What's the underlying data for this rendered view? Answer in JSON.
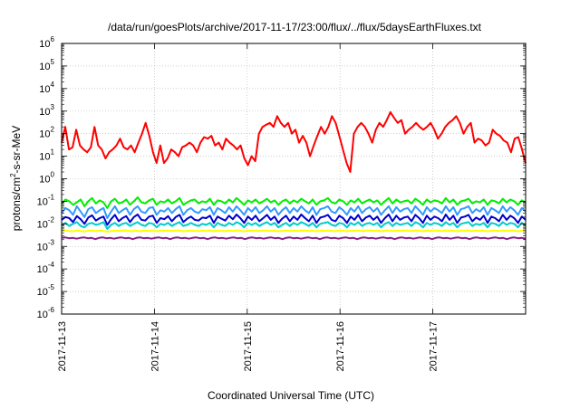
{
  "chart_data": {
    "type": "line",
    "title": "/data/run/goesPlots/archive/2017-11-17/23:00/flux/../flux/5daysEarthFluxes.txt",
    "xlabel": "Coordinated Universal Time (UTC)",
    "ylabel_parts": [
      "protons/cm",
      "2",
      "-s-sr-MeV"
    ],
    "yscale": "log",
    "ylim": [
      1e-06,
      1000000.0
    ],
    "xlim": [
      "2017-11-13T00:00",
      "2017-11-18T00:00"
    ],
    "x_ticks": [
      {
        "at": "2017-11-13T00:00",
        "label": "2017-11-13"
      },
      {
        "at": "2017-11-14T00:00",
        "label": "2017-11-14"
      },
      {
        "at": "2017-11-15T00:00",
        "label": "2017-11-15"
      },
      {
        "at": "2017-11-16T00:00",
        "label": "2017-11-16"
      },
      {
        "at": "2017-11-17T00:00",
        "label": "2017-11-17"
      }
    ],
    "y_ticks": [
      {
        "value": 1e-06,
        "base": "10",
        "exp": "-6"
      },
      {
        "value": 1e-05,
        "base": "10",
        "exp": "-5"
      },
      {
        "value": 0.0001,
        "base": "10",
        "exp": "-4"
      },
      {
        "value": 0.001,
        "base": "10",
        "exp": "-3"
      },
      {
        "value": 0.01,
        "base": "10",
        "exp": "-2"
      },
      {
        "value": 0.1,
        "base": "10",
        "exp": "-1"
      },
      {
        "value": 1,
        "base": "10",
        "exp": "0"
      },
      {
        "value": 10,
        "base": "10",
        "exp": "1"
      },
      {
        "value": 100,
        "base": "10",
        "exp": "2"
      },
      {
        "value": 1000,
        "base": "10",
        "exp": "3"
      },
      {
        "value": 10000,
        "base": "10",
        "exp": "4"
      },
      {
        "value": 100000,
        "base": "10",
        "exp": "5"
      },
      {
        "value": 1000000,
        "base": "10",
        "exp": "6"
      }
    ],
    "grid": true,
    "series": [
      {
        "color": "#ff0000",
        "x_start": "2017-11-13T00:00",
        "x_end": "2017-11-18T00:00",
        "values": [
          40,
          200,
          20,
          25,
          150,
          30,
          20,
          15,
          25,
          200,
          30,
          20,
          8,
          15,
          20,
          30,
          60,
          25,
          20,
          30,
          15,
          40,
          100,
          300,
          80,
          15,
          5,
          30,
          5,
          8,
          20,
          15,
          10,
          25,
          30,
          40,
          30,
          15,
          40,
          70,
          60,
          80,
          30,
          40,
          20,
          60,
          40,
          30,
          20,
          30,
          8,
          4,
          10,
          6,
          100,
          200,
          250,
          300,
          200,
          600,
          300,
          200,
          300,
          100,
          150,
          40,
          80,
          40,
          10,
          30,
          80,
          200,
          100,
          200,
          600,
          300,
          80,
          20,
          5,
          2,
          100,
          200,
          300,
          200,
          100,
          40,
          150,
          300,
          200,
          400,
          900,
          500,
          300,
          400,
          100,
          150,
          200,
          300,
          200,
          150,
          200,
          300,
          150,
          60,
          100,
          200,
          300,
          400,
          600,
          300,
          100,
          200,
          300,
          40,
          60,
          50,
          30,
          40,
          150,
          100,
          80,
          50,
          40,
          15,
          60,
          70,
          20,
          5
        ]
      },
      {
        "color": "#00ee00",
        "x_start": "2017-11-13T00:00",
        "x_end": "2017-11-18T00:00",
        "values": [
          0.08,
          0.12,
          0.1,
          0.07,
          0.09,
          0.12,
          0.06,
          0.1,
          0.14,
          0.08,
          0.11,
          0.09,
          0.05,
          0.1,
          0.13,
          0.08,
          0.09,
          0.12,
          0.07,
          0.1,
          0.15,
          0.09,
          0.08,
          0.11,
          0.13,
          0.07,
          0.1,
          0.09,
          0.12,
          0.08,
          0.1,
          0.14,
          0.07,
          0.09,
          0.11,
          0.12,
          0.08,
          0.1,
          0.09,
          0.13,
          0.07,
          0.11,
          0.1,
          0.08,
          0.12,
          0.09,
          0.14,
          0.1,
          0.07,
          0.11,
          0.09,
          0.12,
          0.08,
          0.1,
          0.13,
          0.09,
          0.11,
          0.07,
          0.1,
          0.12,
          0.08,
          0.11,
          0.09,
          0.13,
          0.1,
          0.08,
          0.12,
          0.07,
          0.1,
          0.11,
          0.14,
          0.09,
          0.08,
          0.12,
          0.1,
          0.07,
          0.11,
          0.09,
          0.13,
          0.08,
          0.1,
          0.12,
          0.09,
          0.11,
          0.07,
          0.1,
          0.14,
          0.08,
          0.12,
          0.09,
          0.1,
          0.11,
          0.08,
          0.13,
          0.1,
          0.07,
          0.12,
          0.09,
          0.11,
          0.1,
          0.08,
          0.14,
          0.09,
          0.12,
          0.07,
          0.1,
          0.11,
          0.13,
          0.08,
          0.1,
          0.09,
          0.12,
          0.07,
          0.11,
          0.1,
          0.08,
          0.13,
          0.09,
          0.12,
          0.1,
          0.07,
          0.11,
          0.09
        ]
      },
      {
        "color": "#3399ff",
        "x_start": "2017-11-13T00:00",
        "x_end": "2017-11-18T00:00",
        "values": [
          0.03,
          0.05,
          0.04,
          0.025,
          0.06,
          0.035,
          0.02,
          0.045,
          0.055,
          0.03,
          0.04,
          0.05,
          0.018,
          0.035,
          0.06,
          0.03,
          0.04,
          0.05,
          0.025,
          0.045,
          0.06,
          0.035,
          0.03,
          0.05,
          0.055,
          0.025,
          0.04,
          0.035,
          0.05,
          0.03,
          0.045,
          0.06,
          0.025,
          0.04,
          0.05,
          0.035,
          0.03,
          0.045,
          0.04,
          0.055,
          0.025,
          0.05,
          0.04,
          0.03,
          0.055,
          0.035,
          0.06,
          0.04,
          0.025,
          0.05,
          0.035,
          0.055,
          0.03,
          0.04,
          0.06,
          0.035,
          0.05,
          0.025,
          0.04,
          0.055,
          0.03,
          0.05,
          0.035,
          0.06,
          0.04,
          0.03,
          0.055,
          0.025,
          0.045,
          0.05,
          0.06,
          0.035,
          0.03,
          0.055,
          0.04,
          0.025,
          0.05,
          0.035,
          0.06,
          0.03,
          0.045,
          0.055,
          0.035,
          0.05,
          0.025,
          0.04,
          0.06,
          0.03,
          0.055,
          0.035,
          0.045,
          0.05,
          0.03,
          0.06,
          0.04,
          0.025,
          0.055,
          0.035,
          0.05,
          0.04,
          0.03,
          0.06,
          0.035,
          0.055,
          0.025,
          0.045,
          0.05,
          0.06,
          0.03,
          0.045,
          0.035,
          0.055,
          0.025,
          0.05,
          0.04,
          0.03,
          0.06,
          0.035,
          0.055,
          0.04,
          0.025,
          0.05,
          0.035
        ]
      },
      {
        "color": "#0000cc",
        "x_start": "2017-11-13T00:00",
        "x_end": "2017-11-18T00:00",
        "values": [
          0.015,
          0.02,
          0.018,
          0.012,
          0.022,
          0.016,
          0.01,
          0.019,
          0.024,
          0.014,
          0.018,
          0.021,
          0.009,
          0.016,
          0.025,
          0.013,
          0.018,
          0.022,
          0.012,
          0.02,
          0.026,
          0.015,
          0.014,
          0.021,
          0.023,
          0.011,
          0.018,
          0.016,
          0.022,
          0.013,
          0.02,
          0.025,
          0.012,
          0.017,
          0.021,
          0.015,
          0.014,
          0.019,
          0.018,
          0.023,
          0.011,
          0.021,
          0.017,
          0.014,
          0.023,
          0.016,
          0.026,
          0.018,
          0.011,
          0.021,
          0.015,
          0.023,
          0.013,
          0.018,
          0.025,
          0.015,
          0.021,
          0.011,
          0.017,
          0.023,
          0.013,
          0.021,
          0.015,
          0.026,
          0.018,
          0.013,
          0.023,
          0.011,
          0.019,
          0.021,
          0.025,
          0.015,
          0.013,
          0.023,
          0.018,
          0.011,
          0.021,
          0.015,
          0.025,
          0.013,
          0.019,
          0.023,
          0.015,
          0.021,
          0.011,
          0.018,
          0.026,
          0.013,
          0.023,
          0.015,
          0.019,
          0.021,
          0.013,
          0.025,
          0.018,
          0.011,
          0.023,
          0.015,
          0.021,
          0.018,
          0.013,
          0.026,
          0.015,
          0.023,
          0.011,
          0.019,
          0.021,
          0.025,
          0.013,
          0.019,
          0.015,
          0.023,
          0.011,
          0.021,
          0.018,
          0.013,
          0.025,
          0.015,
          0.023,
          0.018,
          0.011,
          0.021,
          0.015
        ]
      },
      {
        "color": "#00cccc",
        "x_start": "2017-11-13T00:00",
        "x_end": "2017-11-18T00:00",
        "values": [
          0.009,
          0.011,
          0.008,
          0.01,
          0.012,
          0.008,
          0.007,
          0.01,
          0.011,
          0.009,
          0.01,
          0.012,
          0.006,
          0.009,
          0.011,
          0.008,
          0.01,
          0.011,
          0.008,
          0.01,
          0.012,
          0.009,
          0.008,
          0.011,
          0.01,
          0.007,
          0.01,
          0.009,
          0.011,
          0.008,
          0.01,
          0.012,
          0.008,
          0.009,
          0.011,
          0.009,
          0.008,
          0.01,
          0.009,
          0.011,
          0.007,
          0.011,
          0.009,
          0.008,
          0.011,
          0.009,
          0.012,
          0.01,
          0.007,
          0.011,
          0.009,
          0.011,
          0.008,
          0.01,
          0.012,
          0.009,
          0.011,
          0.007,
          0.009,
          0.011,
          0.008,
          0.011,
          0.009,
          0.012,
          0.01,
          0.008,
          0.011,
          0.007,
          0.01,
          0.011,
          0.012,
          0.009,
          0.008,
          0.011,
          0.01,
          0.007,
          0.011,
          0.009,
          0.012,
          0.008,
          0.01,
          0.011,
          0.009,
          0.011,
          0.007,
          0.01,
          0.012,
          0.008,
          0.011,
          0.009,
          0.01,
          0.011,
          0.008,
          0.012,
          0.01,
          0.007,
          0.011,
          0.009,
          0.011,
          0.01,
          0.008,
          0.012,
          0.009,
          0.011,
          0.007,
          0.01,
          0.011,
          0.012,
          0.008,
          0.01,
          0.009,
          0.011,
          0.007,
          0.011,
          0.01,
          0.008,
          0.012,
          0.009,
          0.011,
          0.01,
          0.007,
          0.011,
          0.009
        ]
      },
      {
        "color": "#ffff00",
        "x_start": "2017-11-13T00:00",
        "x_end": "2017-11-18T00:00",
        "values": [
          0.005,
          0.005,
          0.0048,
          0.0047,
          0.005,
          0.0049,
          0.0046,
          0.005,
          0.0051,
          0.0048,
          0.005,
          0.0049,
          0.0045,
          0.0048,
          0.005,
          0.0049,
          0.005,
          0.0051,
          0.0047,
          0.005,
          0.0049,
          0.0048,
          0.005,
          0.0049,
          0.0051,
          0.0047,
          0.005,
          0.0049,
          0.005,
          0.0048,
          0.005,
          0.0051,
          0.0047,
          0.0049,
          0.005,
          0.0049,
          0.0048,
          0.005,
          0.0049,
          0.0051,
          0.0047,
          0.005,
          0.0049,
          0.0048,
          0.005,
          0.0049,
          0.0051,
          0.005,
          0.0046,
          0.005,
          0.0049,
          0.005,
          0.0048,
          0.005,
          0.0051,
          0.0049,
          0.005,
          0.0047,
          0.0049,
          0.005,
          0.0048,
          0.005,
          0.0049,
          0.0051,
          0.005,
          0.0048,
          0.005,
          0.0047,
          0.005,
          0.0049,
          0.0051,
          0.0049,
          0.0048,
          0.005,
          0.005,
          0.0047,
          0.005,
          0.0049,
          0.0051,
          0.0048,
          0.005,
          0.005,
          0.0049,
          0.005,
          0.0047,
          0.005,
          0.0051,
          0.0048,
          0.005,
          0.0049,
          0.005,
          0.005,
          0.0048,
          0.0051,
          0.005,
          0.0047,
          0.005,
          0.0049,
          0.005,
          0.005,
          0.0048,
          0.0051,
          0.0049,
          0.005,
          0.0047,
          0.005,
          0.005,
          0.0051,
          0.0048,
          0.005,
          0.0049,
          0.005,
          0.0047,
          0.005,
          0.005,
          0.0048,
          0.0051,
          0.0049,
          0.005,
          0.005,
          0.0047,
          0.005,
          0.0049
        ]
      },
      {
        "color": "#882288",
        "x_start": "2017-11-13T00:00",
        "x_end": "2017-11-18T00:00",
        "values": [
          0.0024,
          0.0025,
          0.0023,
          0.0024,
          0.0022,
          0.0024,
          0.0025,
          0.0023,
          0.0024,
          0.0021,
          0.0024,
          0.0025,
          0.0023,
          0.0024,
          0.0022,
          0.0024,
          0.0025,
          0.0023,
          0.0024,
          0.0021,
          0.0024,
          0.0025,
          0.0023,
          0.0024,
          0.0022,
          0.0024,
          0.0025,
          0.0023,
          0.0024,
          0.0021,
          0.0024,
          0.0025,
          0.0023,
          0.0024,
          0.0022,
          0.0024,
          0.0025,
          0.0023,
          0.0024,
          0.0021,
          0.0024,
          0.0025,
          0.0023,
          0.0024,
          0.0022,
          0.0024,
          0.0025,
          0.0023,
          0.0024,
          0.0021,
          0.0024,
          0.0025,
          0.0023,
          0.0024,
          0.0022,
          0.0024,
          0.0025,
          0.0023,
          0.0024,
          0.0021,
          0.0024,
          0.0025,
          0.0023,
          0.0024,
          0.0022,
          0.0024,
          0.0025,
          0.0023,
          0.0024,
          0.0021,
          0.0024,
          0.0025,
          0.0023,
          0.0024,
          0.0022,
          0.0024,
          0.0025,
          0.0023,
          0.0024,
          0.0021,
          0.0024,
          0.0025,
          0.0023,
          0.0024,
          0.0022,
          0.0024,
          0.0025,
          0.0023,
          0.0024,
          0.0021,
          0.0024,
          0.0025,
          0.0023,
          0.0024,
          0.0022,
          0.0024,
          0.0025,
          0.0023,
          0.0024,
          0.0021,
          0.0024,
          0.0025,
          0.0023,
          0.0024,
          0.0022,
          0.0024,
          0.0025,
          0.0023,
          0.0024,
          0.0021,
          0.0024,
          0.0025,
          0.0023,
          0.0024,
          0.0022,
          0.0024,
          0.0025,
          0.0023,
          0.0024,
          0.0021,
          0.0024,
          0.0025,
          0.0023,
          0.0024,
          0.0022
        ]
      }
    ]
  }
}
